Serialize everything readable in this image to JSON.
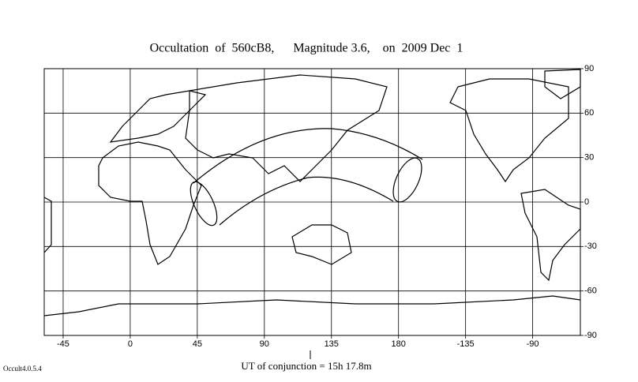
{
  "title": "Occultation  of  560cB8,      Magnitude 3.6,    on  2009 Dec  1",
  "map": {
    "xlim": [
      -57.7,
      302
    ],
    "ylim": [
      -90,
      90
    ],
    "xticks": [
      -45,
      0,
      45,
      90,
      135,
      180,
      {
        "value": 225,
        "label": "-135"
      },
      {
        "value": 270,
        "label": "-90"
      }
    ],
    "yticks": [
      90,
      60,
      30,
      0,
      -30,
      -60,
      -90
    ]
  },
  "footer": "UT of conjunction = 15h 17.8m",
  "version": "Occult4.0.5.4"
}
